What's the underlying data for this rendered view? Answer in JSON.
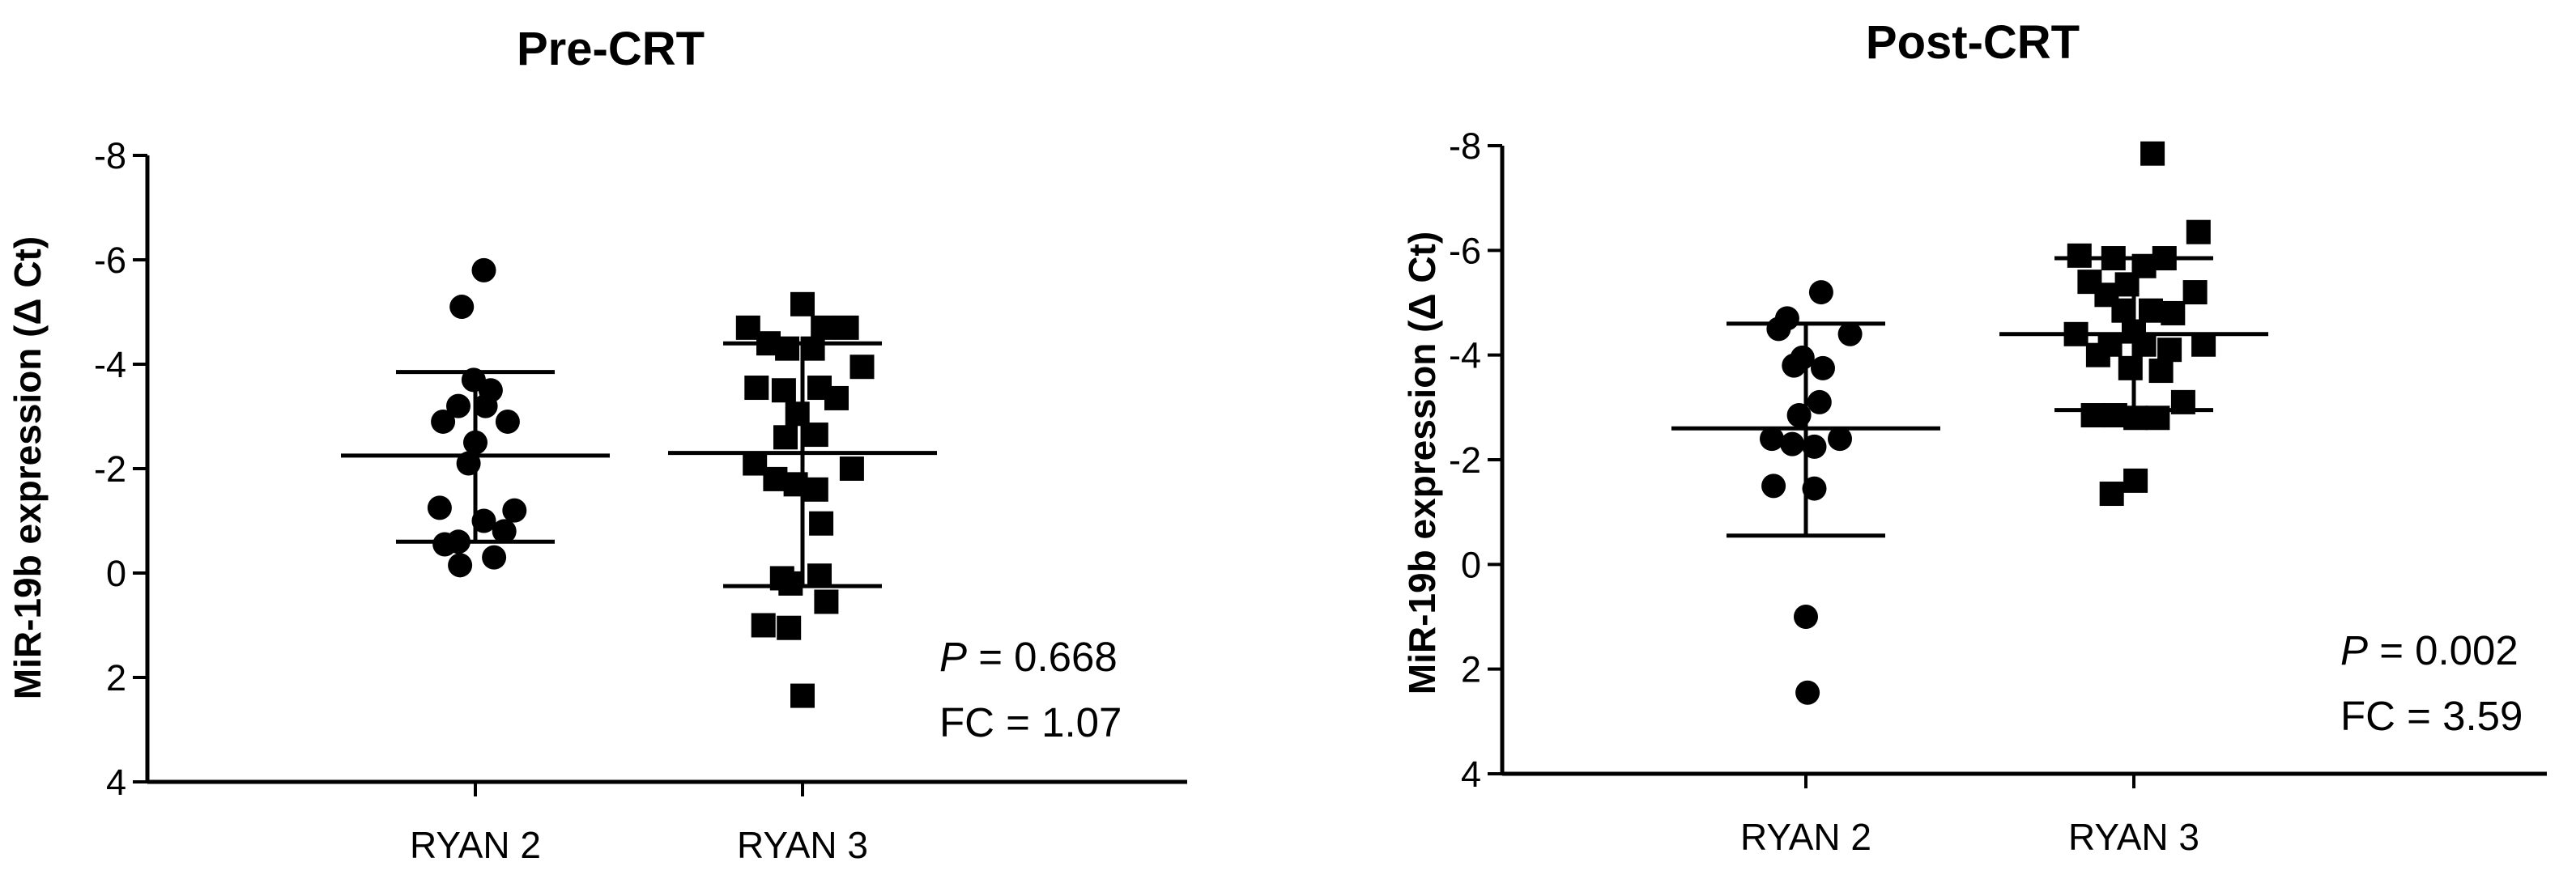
{
  "chart_data": [
    {
      "type": "scatter",
      "title": "Pre-CRT",
      "ylabel": "MiR-19b expression (Δ Ct)",
      "xlabel": "",
      "y_axis_inverted": true,
      "ylim": [
        4,
        -8
      ],
      "yticks": [
        -8,
        -6,
        -4,
        -2,
        0,
        2,
        4
      ],
      "ytick_labels": [
        "-8",
        "-6",
        "-4",
        "-2",
        "0",
        "2",
        "4"
      ],
      "categories": [
        "RYAN 2",
        "RYAN 3"
      ],
      "series": [
        {
          "category": "RYAN 2",
          "marker": "circle",
          "mean": -2.25,
          "sd_upper": -3.85,
          "sd_lower": -0.6,
          "points": [
            {
              "dx": 0.25,
              "y": -5.8
            },
            {
              "dx": -0.4,
              "y": -5.1
            },
            {
              "dx": -0.05,
              "y": -3.7
            },
            {
              "dx": 0.45,
              "y": -3.5
            },
            {
              "dx": -0.5,
              "y": -3.2
            },
            {
              "dx": 0.3,
              "y": -3.2
            },
            {
              "dx": -0.95,
              "y": -2.9
            },
            {
              "dx": 0.95,
              "y": -2.9
            },
            {
              "dx": 0.0,
              "y": -2.5
            },
            {
              "dx": -0.2,
              "y": -2.1
            },
            {
              "dx": -1.05,
              "y": -1.25
            },
            {
              "dx": 1.15,
              "y": -1.2
            },
            {
              "dx": 0.25,
              "y": -1.0
            },
            {
              "dx": 0.85,
              "y": -0.8
            },
            {
              "dx": -0.5,
              "y": -0.6
            },
            {
              "dx": -0.9,
              "y": -0.55
            },
            {
              "dx": 0.55,
              "y": -0.3
            },
            {
              "dx": -0.45,
              "y": -0.15
            }
          ]
        },
        {
          "category": "RYAN 3",
          "marker": "square",
          "mean": -2.3,
          "sd_upper": -4.4,
          "sd_lower": 0.25,
          "points": [
            {
              "dx": 0.0,
              "y": -5.15
            },
            {
              "dx": -1.6,
              "y": -4.7
            },
            {
              "dx": 0.6,
              "y": -4.7
            },
            {
              "dx": 1.3,
              "y": -4.7
            },
            {
              "dx": -1.0,
              "y": -4.4
            },
            {
              "dx": -0.45,
              "y": -4.3
            },
            {
              "dx": 0.3,
              "y": -4.3
            },
            {
              "dx": 1.75,
              "y": -3.95
            },
            {
              "dx": -1.35,
              "y": -3.55
            },
            {
              "dx": -0.55,
              "y": -3.5
            },
            {
              "dx": 0.5,
              "y": -3.55
            },
            {
              "dx": 1.0,
              "y": -3.35
            },
            {
              "dx": -0.15,
              "y": -3.05
            },
            {
              "dx": 0.4,
              "y": -2.65
            },
            {
              "dx": -0.5,
              "y": -2.6
            },
            {
              "dx": -1.4,
              "y": -2.1
            },
            {
              "dx": 1.45,
              "y": -2.0
            },
            {
              "dx": -0.8,
              "y": -1.8
            },
            {
              "dx": -0.2,
              "y": -1.7
            },
            {
              "dx": 0.4,
              "y": -1.6
            },
            {
              "dx": 0.55,
              "y": -0.95
            },
            {
              "dx": 0.5,
              "y": 0.05
            },
            {
              "dx": -0.35,
              "y": 0.2
            },
            {
              "dx": -0.6,
              "y": 0.1
            },
            {
              "dx": 0.7,
              "y": 0.55
            },
            {
              "dx": -1.15,
              "y": 1.0
            },
            {
              "dx": -0.4,
              "y": 1.05
            },
            {
              "dx": 0.0,
              "y": 2.35
            }
          ]
        }
      ],
      "annotation": {
        "p_label": "P",
        "p_value": " = 0.668",
        "fc": "FC = 1.07"
      }
    },
    {
      "type": "scatter",
      "title": "Post-CRT",
      "ylabel": "MiR-19b expression (Δ Ct)",
      "xlabel": "",
      "y_axis_inverted": true,
      "ylim": [
        4,
        -8
      ],
      "yticks": [
        -8,
        -6,
        -4,
        -2,
        0,
        2,
        4
      ],
      "ytick_labels": [
        "-8",
        "-6",
        "-4",
        "-2",
        "0",
        "2",
        "4"
      ],
      "categories": [
        "RYAN 2",
        "RYAN 3"
      ],
      "series": [
        {
          "category": "RYAN 2",
          "marker": "circle",
          "mean": -2.6,
          "sd_upper": -4.6,
          "sd_lower": -0.55,
          "points": [
            {
              "dx": 0.45,
              "y": -5.2
            },
            {
              "dx": -0.55,
              "y": -4.7
            },
            {
              "dx": -0.8,
              "y": -4.5
            },
            {
              "dx": 1.3,
              "y": -4.4
            },
            {
              "dx": -0.1,
              "y": -3.95
            },
            {
              "dx": -0.35,
              "y": -3.8
            },
            {
              "dx": 0.5,
              "y": -3.75
            },
            {
              "dx": 0.4,
              "y": -3.1
            },
            {
              "dx": -0.2,
              "y": -2.85
            },
            {
              "dx": -1.0,
              "y": -2.4
            },
            {
              "dx": 1.0,
              "y": -2.4
            },
            {
              "dx": -0.4,
              "y": -2.3
            },
            {
              "dx": 0.25,
              "y": -2.25
            },
            {
              "dx": -0.95,
              "y": -1.5
            },
            {
              "dx": 0.25,
              "y": -1.45
            },
            {
              "dx": 0.0,
              "y": 1.0
            },
            {
              "dx": 0.05,
              "y": 2.45
            }
          ]
        },
        {
          "category": "RYAN 3",
          "marker": "square",
          "mean": -4.4,
          "sd_upper": -5.85,
          "sd_lower": -2.95,
          "points": [
            {
              "dx": 0.55,
              "y": -7.85
            },
            {
              "dx": 1.9,
              "y": -6.35
            },
            {
              "dx": -1.6,
              "y": -5.9
            },
            {
              "dx": -0.6,
              "y": -5.85
            },
            {
              "dx": 0.9,
              "y": -5.85
            },
            {
              "dx": 0.3,
              "y": -5.7
            },
            {
              "dx": -1.3,
              "y": -5.4
            },
            {
              "dx": -0.2,
              "y": -5.35
            },
            {
              "dx": 1.8,
              "y": -5.2
            },
            {
              "dx": -0.8,
              "y": -5.15
            },
            {
              "dx": -0.3,
              "y": -4.85
            },
            {
              "dx": 0.5,
              "y": -4.85
            },
            {
              "dx": 1.15,
              "y": -4.8
            },
            {
              "dx": -1.7,
              "y": -4.4
            },
            {
              "dx": 0.0,
              "y": -4.45
            },
            {
              "dx": -0.7,
              "y": -4.2
            },
            {
              "dx": 0.3,
              "y": -4.2
            },
            {
              "dx": 1.05,
              "y": -4.1
            },
            {
              "dx": 2.05,
              "y": -4.2
            },
            {
              "dx": -1.05,
              "y": -4.0
            },
            {
              "dx": -0.1,
              "y": -3.75
            },
            {
              "dx": 0.8,
              "y": -3.7
            },
            {
              "dx": 1.45,
              "y": -3.1
            },
            {
              "dx": -1.2,
              "y": -2.85
            },
            {
              "dx": -0.55,
              "y": -2.85
            },
            {
              "dx": 0.05,
              "y": -2.8
            },
            {
              "dx": 0.7,
              "y": -2.8
            },
            {
              "dx": 0.05,
              "y": -1.6
            },
            {
              "dx": -0.65,
              "y": -1.35
            }
          ]
        }
      ],
      "annotation": {
        "p_label": "P",
        "p_value": " = 0.002",
        "fc": "FC = 3.59"
      }
    }
  ]
}
